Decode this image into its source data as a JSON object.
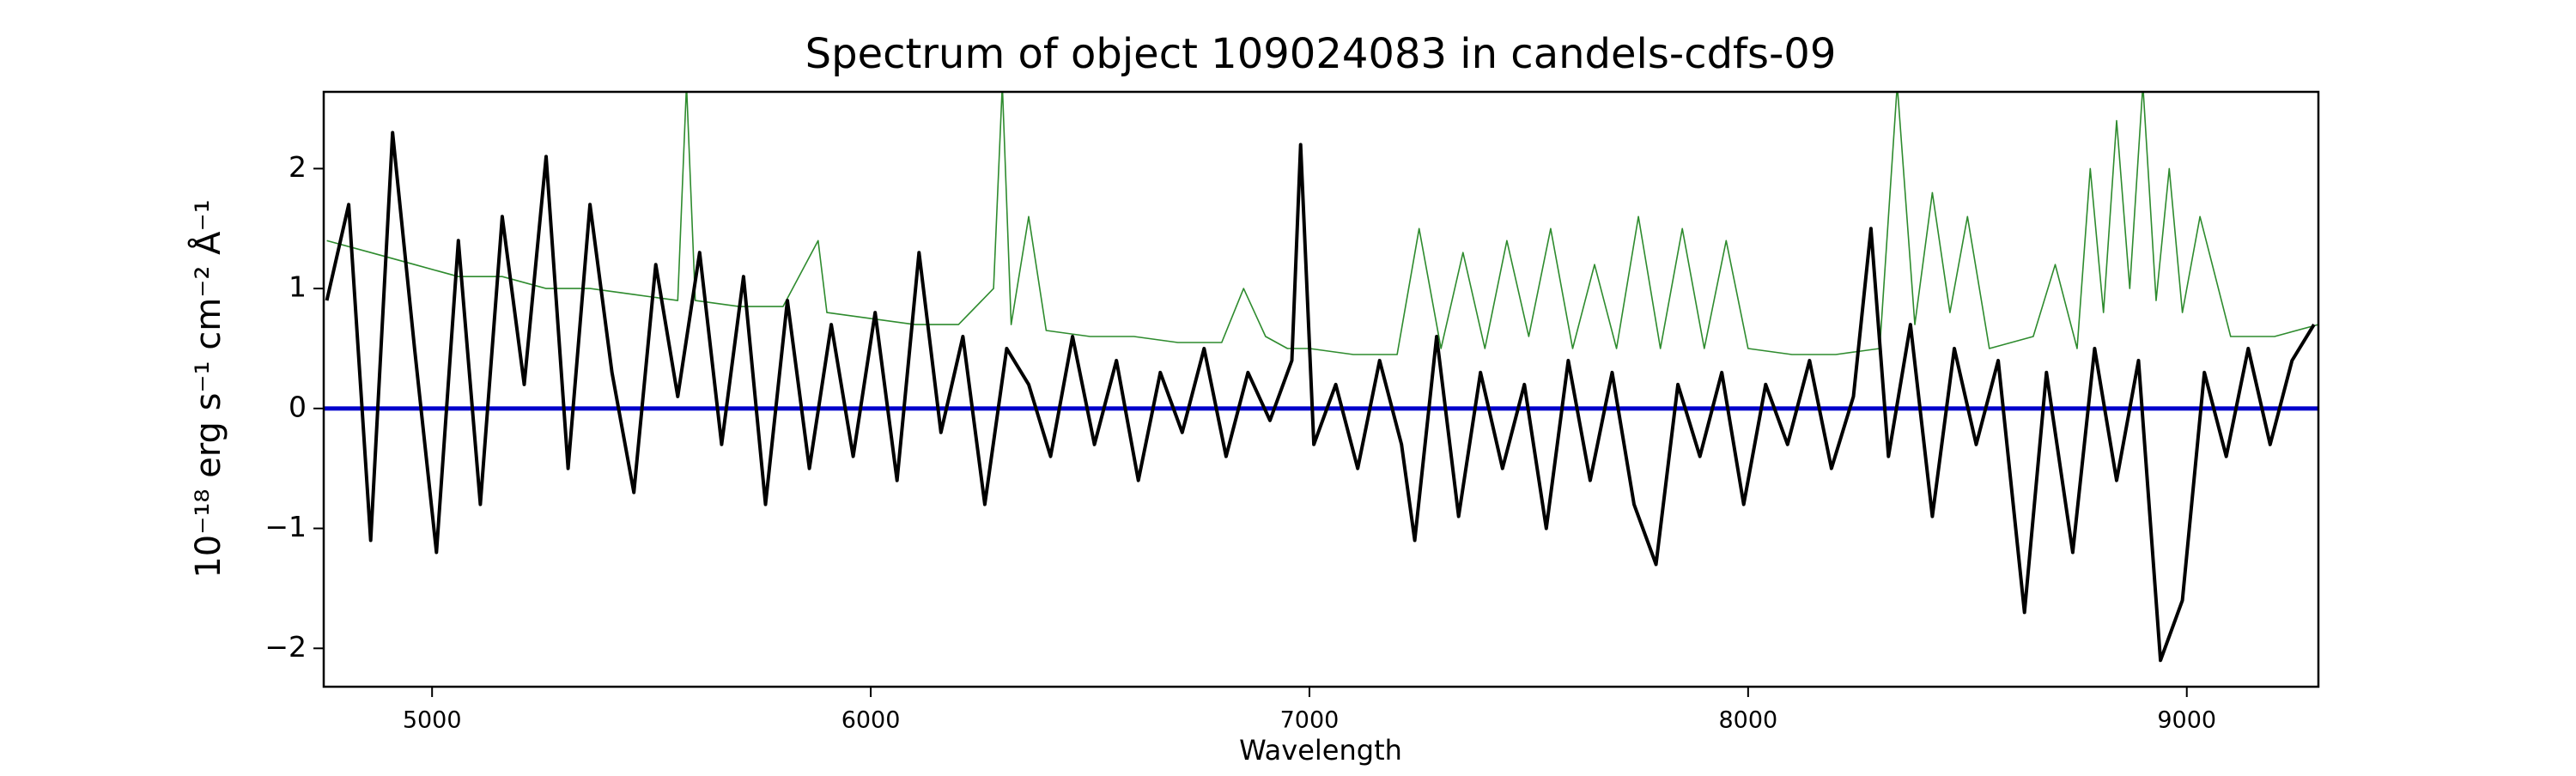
{
  "chart_data": {
    "type": "line",
    "title": "Spectrum of object 109024083 in candels-cdfs-09",
    "xlabel": "Wavelength",
    "ylabel": "10⁻¹⁸ erg s⁻¹ cm⁻² Å⁻¹",
    "xlim": [
      4753,
      9300
    ],
    "ylim": [
      -2.32,
      2.64
    ],
    "xticks": [
      5000,
      6000,
      7000,
      8000,
      9000
    ],
    "yticks": [
      {
        "value": -2,
        "label": "−2"
      },
      {
        "value": -1,
        "label": "−1"
      },
      0,
      1,
      2
    ],
    "grid": false,
    "series": [
      {
        "color": "#2e8b2e",
        "width": 1.6,
        "x": [
          4760,
          4860,
          4960,
          5060,
          5160,
          5260,
          5360,
          5460,
          5560,
          5580,
          5600,
          5700,
          5800,
          5880,
          5900,
          6000,
          6100,
          6200,
          6280,
          6300,
          6320,
          6360,
          6400,
          6500,
          6600,
          6700,
          6800,
          6850,
          6900,
          6950,
          7000,
          7100,
          7200,
          7250,
          7300,
          7350,
          7400,
          7450,
          7500,
          7550,
          7600,
          7650,
          7700,
          7750,
          7800,
          7850,
          7900,
          7950,
          8000,
          8100,
          8200,
          8300,
          8340,
          8380,
          8420,
          8460,
          8500,
          8550,
          8650,
          8700,
          8750,
          8780,
          8810,
          8840,
          8870,
          8900,
          8930,
          8960,
          8990,
          9030,
          9100,
          9200,
          9300
        ],
        "values": [
          1.4,
          1.3,
          1.2,
          1.1,
          1.1,
          1.0,
          1.0,
          0.95,
          0.9,
          2.7,
          0.9,
          0.85,
          0.85,
          1.4,
          0.8,
          0.75,
          0.7,
          0.7,
          1.0,
          2.7,
          0.7,
          1.6,
          0.65,
          0.6,
          0.6,
          0.55,
          0.55,
          1.0,
          0.6,
          0.5,
          0.5,
          0.45,
          0.45,
          1.5,
          0.5,
          1.3,
          0.5,
          1.4,
          0.6,
          1.5,
          0.5,
          1.2,
          0.5,
          1.6,
          0.5,
          1.5,
          0.5,
          1.4,
          0.5,
          0.45,
          0.45,
          0.5,
          2.7,
          0.7,
          1.8,
          0.8,
          1.6,
          0.5,
          0.6,
          1.2,
          0.5,
          2.0,
          0.8,
          2.4,
          1.0,
          2.7,
          0.9,
          2.0,
          0.8,
          1.6,
          0.6,
          0.6,
          0.7
        ]
      },
      {
        "color": "#0000cc",
        "width": 5,
        "x": [
          4753,
          9300
        ],
        "values": [
          0,
          0
        ]
      },
      {
        "color": "#000000",
        "width": 4,
        "x": [
          4760,
          4810,
          4860,
          4910,
          4960,
          5010,
          5060,
          5110,
          5160,
          5210,
          5260,
          5310,
          5360,
          5410,
          5460,
          5510,
          5560,
          5610,
          5660,
          5710,
          5760,
          5810,
          5860,
          5910,
          5960,
          6010,
          6060,
          6110,
          6160,
          6210,
          6260,
          6310,
          6360,
          6410,
          6460,
          6510,
          6560,
          6610,
          6660,
          6710,
          6760,
          6810,
          6860,
          6910,
          6960,
          6980,
          7010,
          7060,
          7110,
          7160,
          7210,
          7240,
          7290,
          7340,
          7390,
          7440,
          7490,
          7540,
          7590,
          7640,
          7690,
          7740,
          7790,
          7840,
          7890,
          7940,
          7990,
          8040,
          8090,
          8140,
          8190,
          8240,
          8280,
          8320,
          8370,
          8420,
          8470,
          8520,
          8570,
          8630,
          8680,
          8740,
          8790,
          8840,
          8890,
          8940,
          8990,
          9040,
          9090,
          9140,
          9190,
          9240,
          9290
        ],
        "values": [
          0.9,
          1.7,
          -1.1,
          2.3,
          0.5,
          -1.2,
          1.4,
          -0.8,
          1.6,
          0.2,
          2.1,
          -0.5,
          1.7,
          0.3,
          -0.7,
          1.2,
          0.1,
          1.3,
          -0.3,
          1.1,
          -0.8,
          0.9,
          -0.5,
          0.7,
          -0.4,
          0.8,
          -0.6,
          1.3,
          -0.2,
          0.6,
          -0.8,
          0.5,
          0.2,
          -0.4,
          0.6,
          -0.3,
          0.4,
          -0.6,
          0.3,
          -0.2,
          0.5,
          -0.4,
          0.3,
          -0.1,
          0.4,
          2.2,
          -0.3,
          0.2,
          -0.5,
          0.4,
          -0.3,
          -1.1,
          0.6,
          -0.9,
          0.3,
          -0.5,
          0.2,
          -1.0,
          0.4,
          -0.6,
          0.3,
          -0.8,
          -1.3,
          0.2,
          -0.4,
          0.3,
          -0.8,
          0.2,
          -0.3,
          0.4,
          -0.5,
          0.1,
          1.5,
          -0.4,
          0.7,
          -0.9,
          0.5,
          -0.3,
          0.4,
          -1.7,
          0.3,
          -1.2,
          0.5,
          -0.6,
          0.4,
          -2.1,
          -1.6,
          0.3,
          -0.4,
          0.5,
          -0.3,
          0.4,
          0.7
        ]
      }
    ]
  }
}
